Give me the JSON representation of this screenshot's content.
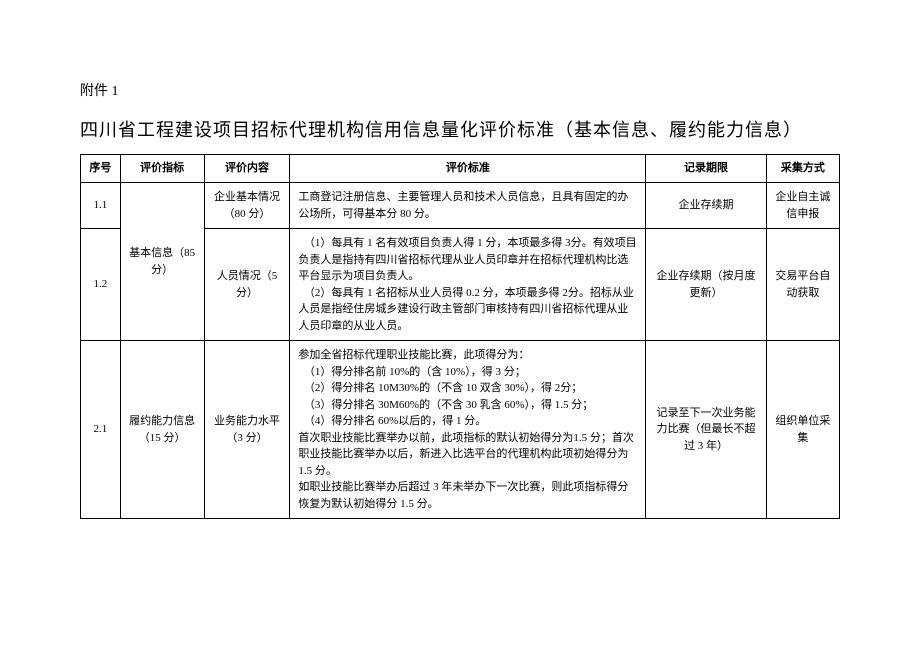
{
  "attachment_label": "附件 1",
  "title": "四川省工程建设项目招标代理机构信用信息量化评价标准（基本信息、履约能力信息）",
  "headers": {
    "seq": "序号",
    "indicator": "评价指标",
    "content": "评价内容",
    "standard": "评价标准",
    "period": "记录期限",
    "method": "采集方式"
  },
  "rows": {
    "r1": {
      "seq": "1.1",
      "indicator": "基本信息（85分）",
      "content": "企业基本情况（80 分）",
      "standard": "工商登记注册信息、主要管理人员和技术人员信息，且具有固定的办公场所，可得基本分 80 分。",
      "period": "企业存续期",
      "method": "企业自主诚信申报"
    },
    "r2": {
      "seq": "1.2",
      "content": "人员情况（5分）",
      "standard": "　（1）每具有 1 名有效项目负责人得 1 分，本项最多得 3分。有效项目负责人是指持有四川省招标代理从业人员印章并在招标代理机构比选平台显示为项目负责人。\n　（2）每具有 1 名招标从业人员得 0.2 分，本项最多得 2分。招标从业人员是指经住房城乡建设行政主管部门审核持有四川省招标代理从业人员印章的从业人员。",
      "period": "企业存续期（按月度更新）",
      "method": "交易平台自动获取"
    },
    "r3": {
      "seq": "2.1",
      "indicator": "履约能力信息（15 分）",
      "content": "业务能力水平（3 分）",
      "standard": "参加全省招标代理职业技能比赛，此项得分为：\n　（1）得分排名前 10%的（含 10%），得 3 分；\n　（2）得分排名 10M30%的（不含 10 双含 30%），得 2分；\n　（3）得分排名 30M60%的（不含 30 乳含 60%），得 1.5 分；\n　（4）得分排名 60%以后的，得 1 分。\n首次职业技能比赛举办以前，此项指标的默认初始得分为1.5 分；首次职业技能比赛举办以后，新进入比选平台的代理机构此项初始得分为 1.5 分。\n如职业技能比赛举办后超过 3 年未举办下一次比赛，则此项指标得分恢复为默认初始得分 1.5 分。",
      "period": "记录至下一次业务能力比赛（但最长不超过 3 年）",
      "method": "组织单位采集"
    }
  }
}
